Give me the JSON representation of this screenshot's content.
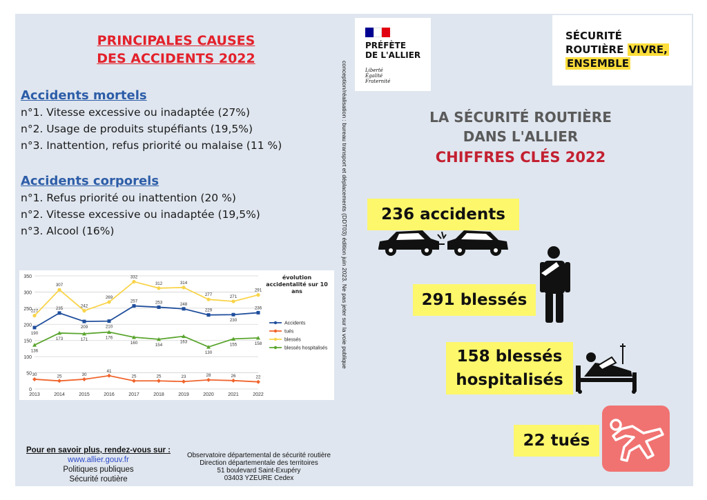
{
  "causes": {
    "title_line1": "PRINCIPALES CAUSES",
    "title_line2": "DES ACCIDENTS 2022",
    "mortels": {
      "title": "Accidents mortels",
      "items": [
        "n°1. Vitesse excessive ou inadaptée (27%)",
        "n°2. Usage de produits stupéfiants (19,5%)",
        "n°3. Inattention, refus priorité ou malaise (11 %)"
      ]
    },
    "corporels": {
      "title": "Accidents corporels",
      "items": [
        "n°1.  Refus priorité ou inattention (20 %)",
        "n°2. Vitesse excessive ou inadaptée (19,5%)",
        "n°3. Alcool (16%)"
      ]
    }
  },
  "chart_data": {
    "type": "line",
    "title": "évolution accidentalité sur 10 ans",
    "x": [
      "2013",
      "2014",
      "2015",
      "2016",
      "2017",
      "2018",
      "2019",
      "2020",
      "2021",
      "2022"
    ],
    "ylim": [
      0,
      350
    ],
    "yticks": [
      0,
      50,
      100,
      150,
      200,
      250,
      300,
      350
    ],
    "grid": true,
    "legend_position": "right",
    "series": [
      {
        "name": "Accidents",
        "color": "#1f4e9c",
        "marker": "square",
        "values": [
          190,
          235,
          209,
          210,
          257,
          253,
          248,
          229,
          230,
          236
        ]
      },
      {
        "name": "tués",
        "color": "#f0632b",
        "marker": "diamond",
        "values": [
          30,
          25,
          30,
          41,
          25,
          25,
          23,
          28,
          26,
          22
        ]
      },
      {
        "name": "blessés",
        "color": "#f9d44a",
        "marker": "circle",
        "values": [
          227,
          307,
          242,
          269,
          332,
          312,
          314,
          277,
          271,
          291
        ]
      },
      {
        "name": "blessés hospitalisés",
        "color": "#5aa52e",
        "marker": "triangle",
        "values": [
          136,
          173,
          171,
          176,
          160,
          154,
          163,
          130,
          155,
          158
        ]
      }
    ]
  },
  "footer": {
    "more_info": "Pour en savoir plus, rendez-vous sur :",
    "url": "www.allier.gouv.fr",
    "link1": "Politiques publiques",
    "link2": "Sécurité routière",
    "observatoire": [
      "Observatoire départemental de sécurité routière",
      "Direction départementale des territoires",
      "51 boulevard Saint-Exupéry",
      "03403 YZEURE Cedex"
    ]
  },
  "credit": "conception/réalisation : bureau transport et déplacements (DDT03) édition juin 2023. Ne pas jeter sur la voie publique",
  "prefecture": {
    "name_line1": "PRÉFÈTE",
    "name_line2": "DE L'ALLIER",
    "motto": [
      "Liberté",
      "Égalité",
      "Fraternité"
    ],
    "flag_colors": [
      "#000091",
      "#ffffff",
      "#e1000f"
    ]
  },
  "securite_routiere": {
    "line1": "SÉCURITÉ",
    "line2a": "ROUTIÈRE",
    "line2b": "VIVRE,",
    "line3": "ENSEMBLE",
    "highlight_color": "#ffde3b"
  },
  "key_figures": {
    "title_line1": "LA SÉCURITÉ ROUTIÈRE",
    "title_line2": "DANS L'ALLIER",
    "subtitle": "CHIFFRES CLÉS 2022",
    "accidents": "236 accidents",
    "blesses": "291 blessés",
    "hospitalises_line1": "158 blessés",
    "hospitalises_line2": "hospitalisés",
    "tues": "22 tués",
    "highlight_color": "#fdf76b",
    "tues_icon_color": "#f07372"
  }
}
